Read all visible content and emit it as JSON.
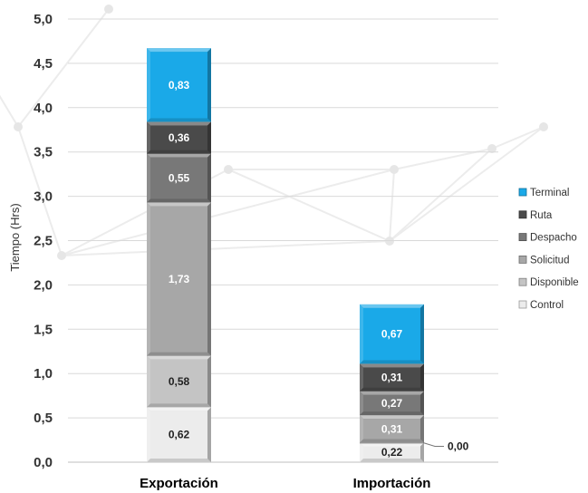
{
  "chart_data": {
    "type": "bar",
    "stacked": true,
    "categories": [
      "Exportación",
      "Importación"
    ],
    "ylabel": "Tiempo (Hrs)",
    "ylim": [
      0,
      5
    ],
    "ytick_step": 0.5,
    "yticks": [
      "0,0",
      "0,5",
      "1,0",
      "1,5",
      "2,0",
      "2,5",
      "3,0",
      "3,5",
      "4,0",
      "4,5",
      "5,0"
    ],
    "grid": true,
    "legend_position": "right",
    "series": [
      {
        "name": "Control",
        "values": [
          0.62,
          0.22
        ],
        "labels": [
          "0,62",
          "0,22"
        ],
        "color": "#ececec"
      },
      {
        "name": "Disponible",
        "values": [
          0.58,
          0.0
        ],
        "labels": [
          "0,58",
          "0,00"
        ],
        "color": "#c4c4c4"
      },
      {
        "name": "Solicitud",
        "values": [
          1.73,
          0.31
        ],
        "labels": [
          "1,73",
          "0,31"
        ],
        "color": "#a7a7a7"
      },
      {
        "name": "Despacho",
        "values": [
          0.55,
          0.27
        ],
        "labels": [
          "0,55",
          "0,27"
        ],
        "color": "#787878"
      },
      {
        "name": "Ruta",
        "values": [
          0.36,
          0.31
        ],
        "labels": [
          "0,36",
          "0,31"
        ],
        "color": "#4a4a4a"
      },
      {
        "name": "Terminal",
        "values": [
          0.83,
          0.67
        ],
        "labels": [
          "0,83",
          "0,67"
        ],
        "color": "#1aa9e8"
      }
    ]
  }
}
